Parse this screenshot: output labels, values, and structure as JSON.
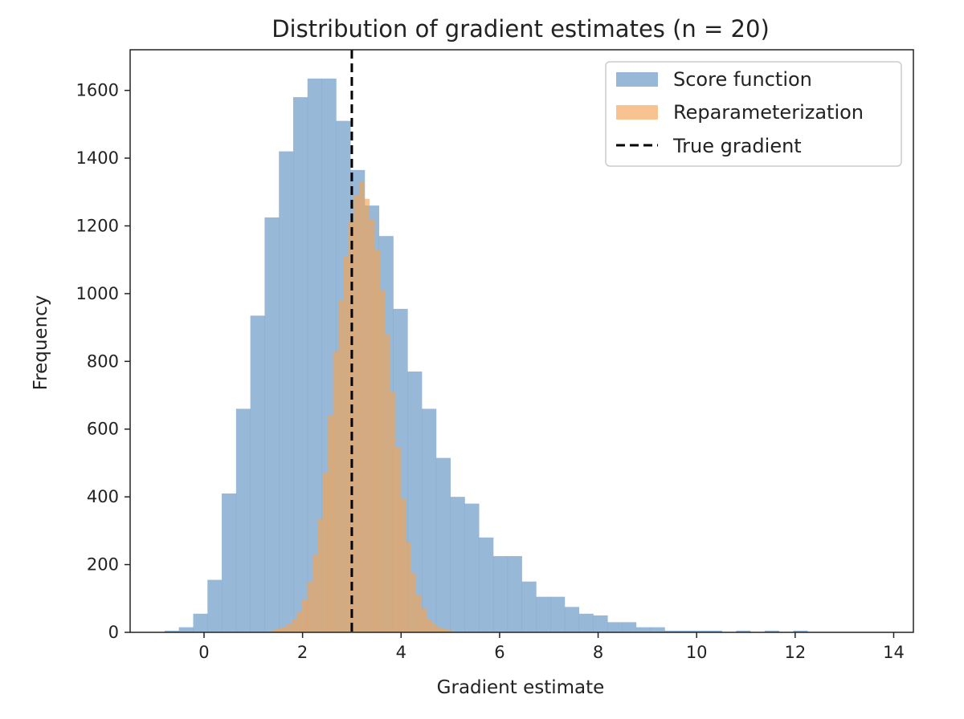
{
  "chart_data": {
    "type": "bar",
    "title": "Distribution of gradient estimates (n = 20)",
    "xlabel": "Gradient estimate",
    "ylabel": "Frequency",
    "xlim": [
      -1.5,
      14.4
    ],
    "ylim": [
      0,
      1720
    ],
    "xticks": [
      0,
      2,
      4,
      6,
      8,
      10,
      12,
      14
    ],
    "yticks": [
      0,
      200,
      400,
      600,
      800,
      1000,
      1200,
      1400,
      1600
    ],
    "legend_position": "top-right",
    "true_gradient": 3.0,
    "series": [
      {
        "name": "Score function",
        "color": "#7ba4cc",
        "opacity": 0.78,
        "bin_width": 0.29,
        "bin_start": -0.8,
        "counts": [
          5,
          15,
          55,
          155,
          410,
          660,
          935,
          1225,
          1420,
          1580,
          1635,
          1635,
          1510,
          1365,
          1260,
          1170,
          955,
          770,
          660,
          515,
          400,
          380,
          280,
          225,
          225,
          150,
          105,
          105,
          75,
          55,
          50,
          30,
          30,
          15,
          15,
          5,
          5,
          5,
          5,
          0,
          5,
          0,
          5,
          0,
          5,
          0,
          0,
          0,
          0,
          0
        ]
      },
      {
        "name": "Reparameterization",
        "color": "#f2a456",
        "opacity": 0.65,
        "bin_width": 0.105,
        "bin_start": 1.36,
        "counts": [
          5,
          10,
          15,
          25,
          40,
          60,
          95,
          150,
          230,
          335,
          470,
          640,
          830,
          980,
          1110,
          1215,
          1290,
          1330,
          1280,
          1220,
          1130,
          1010,
          880,
          710,
          545,
          395,
          265,
          175,
          110,
          70,
          40,
          25,
          15,
          10,
          5
        ]
      }
    ],
    "vline": {
      "name": "True gradient",
      "x": 3.0,
      "color": "#000000",
      "style": "dashed"
    }
  }
}
